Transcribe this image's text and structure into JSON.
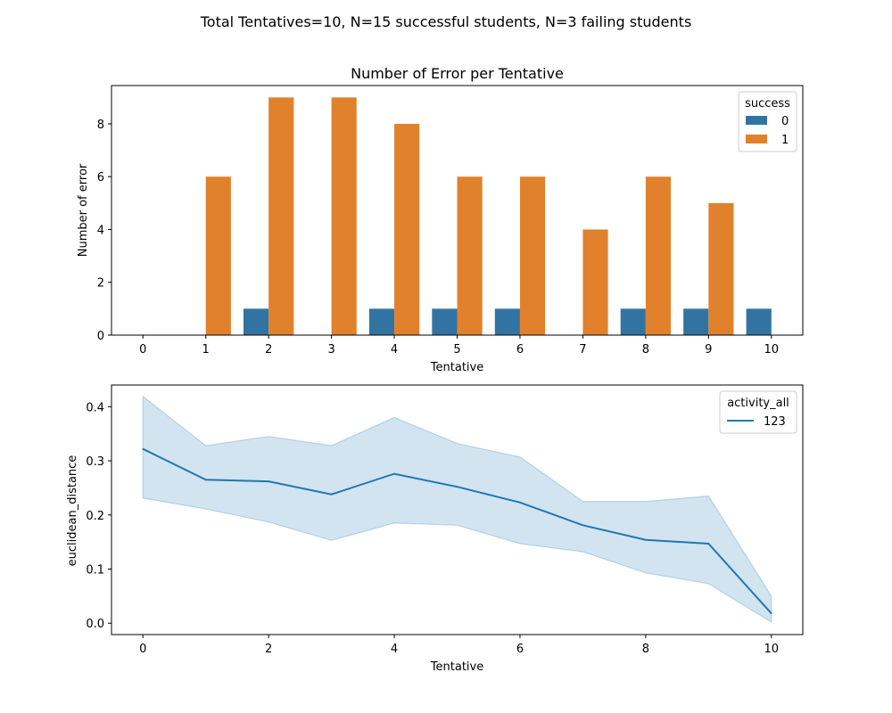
{
  "suptitle": "Total Tentatives=10, N=15 successful students, N=3 failing students",
  "colors": {
    "series0": "#3274a1",
    "series1": "#e1812c",
    "line": "#1f77b4",
    "band": "#1f77b4"
  },
  "chart_data": [
    {
      "type": "bar",
      "title": "Number of Error per Tentative",
      "xlabel": "Tentative",
      "ylabel": "Number of error",
      "categories": [
        "0",
        "1",
        "2",
        "3",
        "4",
        "5",
        "6",
        "7",
        "8",
        "9",
        "10"
      ],
      "ylim": [
        0,
        9.45
      ],
      "yticks": [
        0,
        2,
        4,
        6,
        8
      ],
      "legend": {
        "title": "success",
        "placement": "upper right"
      },
      "series": [
        {
          "name": "0",
          "values": [
            0,
            0,
            1,
            0,
            1,
            1,
            1,
            0,
            1,
            1,
            1
          ]
        },
        {
          "name": "1",
          "values": [
            0,
            6,
            9,
            9,
            8,
            6,
            6,
            4,
            6,
            5,
            0
          ]
        }
      ]
    },
    {
      "type": "line",
      "title": "",
      "xlabel": "Tentative",
      "ylabel": "euclidean_distance",
      "xlim": [
        -0.5,
        10.5
      ],
      "ylim": [
        -0.021,
        0.44
      ],
      "xticks": [
        0,
        2,
        4,
        6,
        8,
        10
      ],
      "yticks": [
        0.0,
        0.1,
        0.2,
        0.3,
        0.4
      ],
      "legend": {
        "title": "activity_all",
        "placement": "upper right"
      },
      "series": [
        {
          "name": "123",
          "x": [
            0,
            1,
            2,
            3,
            4,
            5,
            6,
            7,
            8,
            9,
            10
          ],
          "y": [
            0.322,
            0.265,
            0.262,
            0.238,
            0.276,
            0.252,
            0.223,
            0.181,
            0.154,
            0.147,
            0.018
          ],
          "ci_lower": [
            0.231,
            0.211,
            0.187,
            0.153,
            0.185,
            0.181,
            0.147,
            0.132,
            0.093,
            0.073,
            0.002
          ],
          "ci_upper": [
            0.419,
            0.328,
            0.345,
            0.328,
            0.38,
            0.332,
            0.307,
            0.225,
            0.225,
            0.235,
            0.05
          ]
        }
      ]
    }
  ]
}
